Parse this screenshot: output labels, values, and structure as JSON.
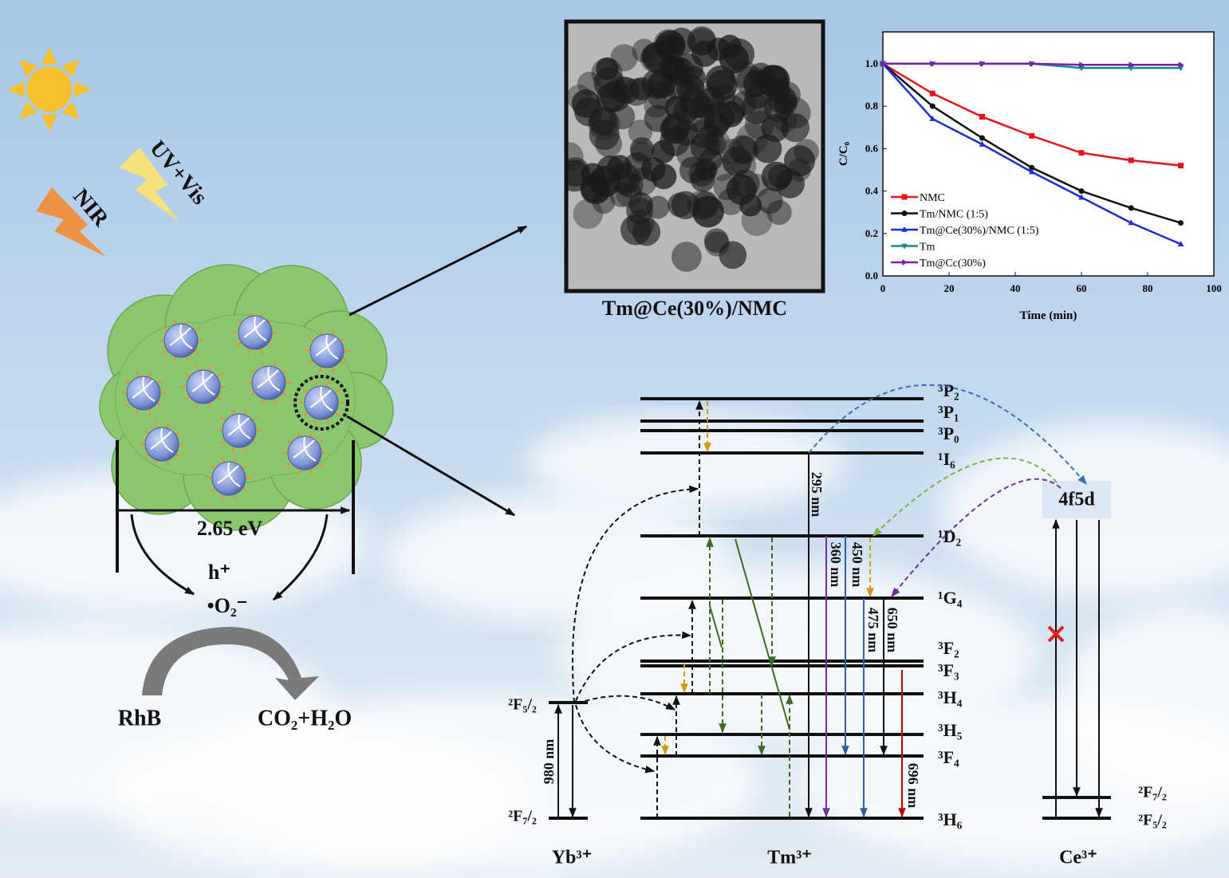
{
  "chart_data": {
    "type": "line",
    "xlabel": "Time (min)",
    "ylabel": "C/C₀",
    "x": [
      0,
      15,
      30,
      45,
      60,
      75,
      90
    ],
    "xlim": [
      0,
      100
    ],
    "xticks": [
      0,
      20,
      40,
      60,
      80,
      100
    ],
    "ylim": [
      0,
      1.15
    ],
    "yticks": [
      {
        "value": 0,
        "label": "0.0"
      },
      0.2,
      0.4,
      0.6,
      0.8,
      {
        "value": 1,
        "label": "1.0"
      }
    ],
    "legend": "lower left",
    "series": [
      {
        "name": "NMC",
        "color": "#e8141c",
        "marker": "square",
        "values": [
          1,
          0.86,
          0.75,
          0.66,
          0.58,
          0.545,
          0.52
        ]
      },
      {
        "name": "Tm/NMC (1:5)",
        "color": "#111111",
        "marker": "circle",
        "values": [
          1,
          0.8,
          0.65,
          0.51,
          0.4,
          0.32,
          0.25
        ]
      },
      {
        "name": "Tm@Ce(30%)/NMC (1:5)",
        "color": "#1d2fd6",
        "marker": "triangle-up",
        "values": [
          1,
          0.74,
          0.62,
          0.49,
          0.37,
          0.25,
          0.15
        ]
      },
      {
        "name": "Tm",
        "color": "#1a8c8c",
        "marker": "triangle-down",
        "values": [
          1,
          1,
          1,
          1,
          0.98,
          0.98,
          0.98
        ]
      },
      {
        "name": "Tm@Cc(30%)",
        "color": "#7a1fb0",
        "marker": "triangle-right",
        "values": [
          1,
          1,
          1,
          1,
          0.995,
          0.995,
          0.995
        ]
      }
    ]
  },
  "tem": {
    "caption": "Tm@Ce(30%)/NMC"
  },
  "photocatalysis": {
    "light": [
      "UV+Vis",
      "NIR"
    ],
    "band_gap": "2.65 eV",
    "species": [
      "h⁺",
      "•O₂⁻"
    ],
    "reactant": "RhB",
    "product": "CO₂+H₂O"
  },
  "energy_diagram": {
    "ions": [
      "Yb³⁺",
      "Tm³⁺",
      "Ce³⁺"
    ],
    "yb_levels": [
      "²F₅/₂",
      "²F₇/₂"
    ],
    "tm_levels": [
      "³P₂",
      "³P₁",
      "³P₀",
      "¹I₆",
      "¹D₂",
      "¹G₄",
      "³F₂",
      "³F₃",
      "³H₄",
      "³H₅",
      "³F₄",
      "³H₆"
    ],
    "ce_levels": [
      "4f5d",
      "²F₇/₂",
      "²F₅/₂"
    ],
    "transitions": [
      "295 nm",
      "360 nm",
      "450 nm",
      "475 nm",
      "650 nm",
      "696 nm",
      "980 nm"
    ]
  }
}
